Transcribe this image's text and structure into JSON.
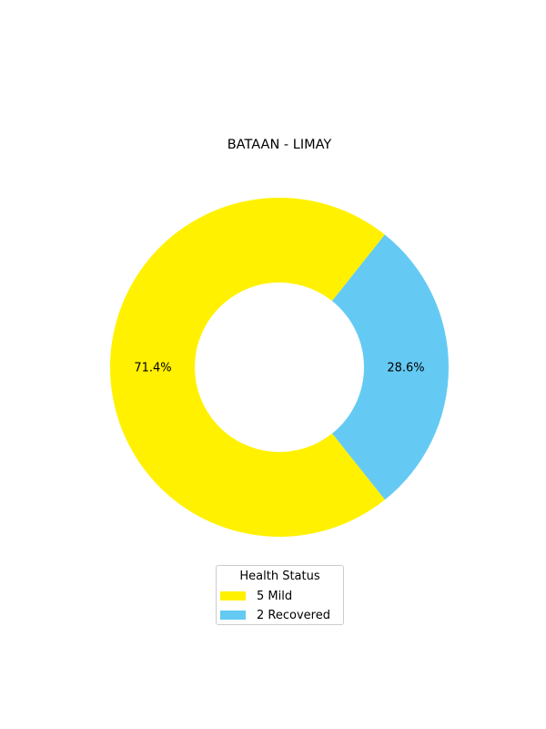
{
  "chart_data": {
    "type": "pie",
    "title": "BATAAN - LIMAY",
    "donut": true,
    "slices": [
      {
        "label": "Mild",
        "value": 5,
        "percent": "71.4%",
        "color": "#FFF100"
      },
      {
        "label": "Recovered",
        "value": 2,
        "percent": "28.6%",
        "color": "#64CAF3"
      }
    ],
    "legend": {
      "title": "Health Status",
      "placement": "bottom-center",
      "entries": [
        "5  Mild",
        "2  Recovered"
      ]
    }
  }
}
